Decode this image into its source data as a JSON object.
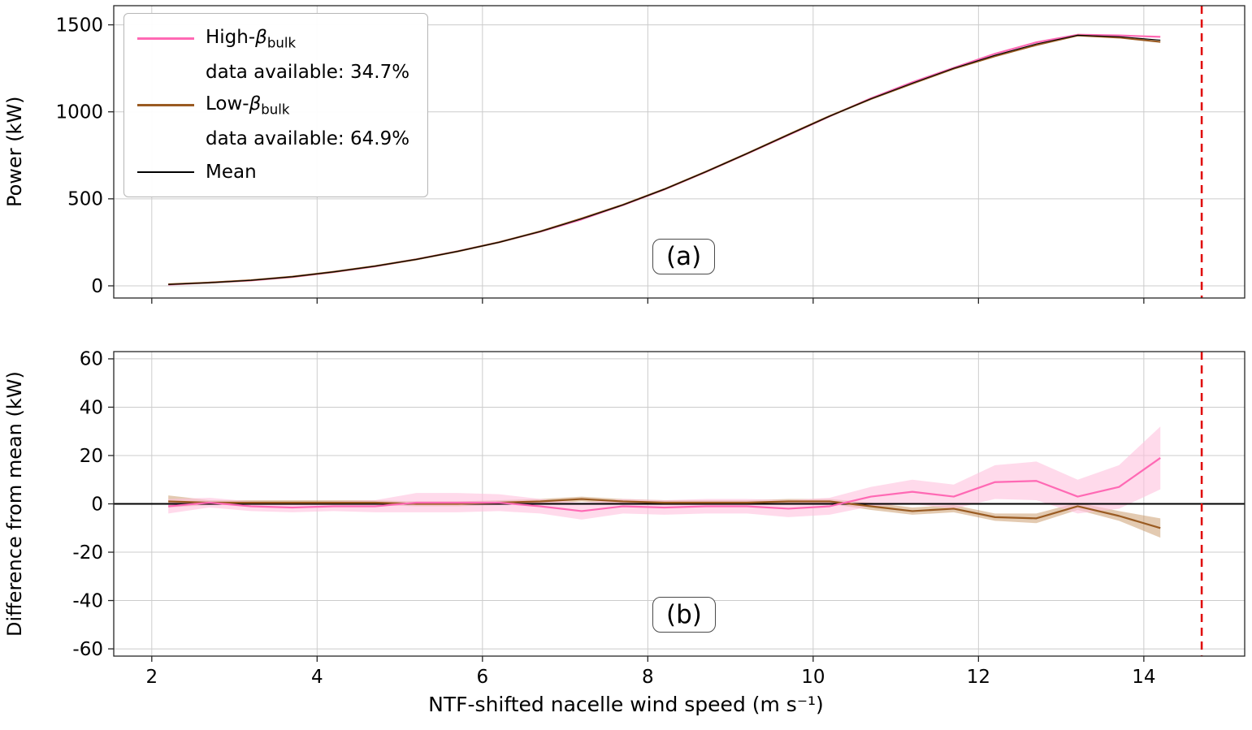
{
  "figure": {
    "xlabel": "NTF-shifted nacelle wind speed (m s⁻¹)"
  },
  "legend": {
    "entries": [
      {
        "prefix": "High-",
        "beta": "β",
        "sub": "bulk",
        "avail": "data available: 34.7%",
        "color": "#ff69b4"
      },
      {
        "prefix": "Low-",
        "beta": "β",
        "sub": "bulk",
        "avail": "data available: 64.9%",
        "color": "#9a5b22"
      },
      {
        "label": "Mean",
        "color": "#000000"
      }
    ]
  },
  "colors": {
    "high_line": "#ff69b4",
    "low_line": "#9a5b22",
    "mean_line": "#000000",
    "high_band": "#ffc2dd",
    "low_band": "#c89664",
    "cutoff_line": "#e00000",
    "grid": "#cccccc"
  },
  "chart_data": [
    {
      "id": "a",
      "type": "line",
      "title": "",
      "ylabel": "Power (kW)",
      "annotation": "(a)",
      "xlim": [
        1.54,
        15.22
      ],
      "ylim": [
        -70,
        1610
      ],
      "xticks": [
        2,
        4,
        6,
        8,
        10,
        12,
        14
      ],
      "yticks": [
        0,
        500,
        1000,
        1500
      ],
      "grid": true,
      "legend_position": "upper left",
      "vline": {
        "x": 14.7,
        "color": "#e00000",
        "style": "dashed"
      },
      "x": [
        2.2,
        2.7,
        3.2,
        3.7,
        4.2,
        4.7,
        5.2,
        5.7,
        6.2,
        6.7,
        7.2,
        7.7,
        8.2,
        8.7,
        9.2,
        9.7,
        10.2,
        10.7,
        11.2,
        11.7,
        12.2,
        12.7,
        13.2,
        13.7,
        14.2
      ],
      "series": [
        {
          "name": "High-beta_bulk power",
          "color": "#ff69b4",
          "width": 2.2,
          "values": [
            7,
            18.5,
            31,
            50.5,
            79,
            112,
            152.5,
            198.5,
            250.5,
            311,
            382,
            464,
            553.5,
            654,
            759,
            866,
            974,
            1078,
            1170,
            1253,
            1334,
            1399.5,
            1443,
            1439,
            1431
          ]
        },
        {
          "name": "Low-beta_bulk power",
          "color": "#9a5b22",
          "width": 2.2,
          "values": [
            9,
            18.5,
            32.5,
            52.5,
            80.5,
            113.5,
            152,
            198,
            250.5,
            313,
            387,
            466,
            555.5,
            655.5,
            760.5,
            869,
            976,
            1074,
            1162,
            1248,
            1319.5,
            1384,
            1439,
            1427,
            1402
          ]
        },
        {
          "name": "Mean power",
          "color": "#000000",
          "width": 1.1,
          "values": [
            8,
            18,
            32,
            52,
            80,
            113,
            152,
            198,
            250,
            312,
            385,
            465,
            555,
            655,
            760,
            868,
            975,
            1075,
            1165,
            1250,
            1325,
            1390,
            1440,
            1432,
            1412
          ]
        }
      ]
    },
    {
      "id": "b",
      "type": "line",
      "title": "",
      "ylabel": "Difference from mean (kW)",
      "xlabel": "NTF-shifted nacelle wind speed (m s⁻¹)",
      "annotation": "(b)",
      "xlim": [
        1.54,
        15.22
      ],
      "ylim": [
        -63,
        63
      ],
      "xticks": [
        2,
        4,
        6,
        8,
        10,
        12,
        14
      ],
      "yticks": [
        -60,
        -40,
        -20,
        0,
        20,
        40,
        60
      ],
      "grid": true,
      "hline": 0,
      "vline": {
        "x": 14.7,
        "color": "#e00000",
        "style": "dashed"
      },
      "x": [
        2.2,
        2.7,
        3.2,
        3.7,
        4.2,
        4.7,
        5.2,
        5.7,
        6.2,
        6.7,
        7.2,
        7.7,
        8.2,
        8.7,
        9.2,
        9.7,
        10.2,
        10.7,
        11.2,
        11.7,
        12.2,
        12.7,
        13.2,
        13.7,
        14.2
      ],
      "series": [
        {
          "name": "Low-beta_bulk minus mean",
          "color": "#9a5b22",
          "width": 2.2,
          "values": [
            1,
            0.5,
            0.5,
            0.5,
            0.5,
            0.5,
            0,
            0,
            0.5,
            1,
            2,
            1,
            0.5,
            0.5,
            0.5,
            1,
            1,
            -1,
            -3,
            -2,
            -5.5,
            -6,
            -1,
            -5,
            -10
          ],
          "band": [
            2.5,
            1,
            1,
            1,
            1,
            1,
            1,
            1,
            1,
            1,
            1,
            1,
            1,
            1,
            1,
            1,
            1,
            1.5,
            1.5,
            1.5,
            1.5,
            2,
            1.5,
            2,
            4
          ],
          "band_color": "#c89664",
          "band_opacity": 0.5
        },
        {
          "name": "High-beta_bulk minus mean",
          "color": "#ff69b4",
          "width": 2.2,
          "values": [
            -1,
            0.5,
            -1,
            -1.5,
            -1,
            -1,
            0.5,
            0.5,
            0.5,
            -1,
            -3,
            -1,
            -1.5,
            -1,
            -1,
            -2,
            -1,
            3,
            5,
            3,
            9,
            9.5,
            3,
            7,
            19
          ],
          "band": [
            3,
            2,
            2,
            2,
            2,
            2.5,
            4,
            4,
            3.5,
            3,
            3.5,
            3,
            3,
            3,
            3,
            3.5,
            3.5,
            4,
            5,
            5,
            7,
            8,
            7,
            9,
            13
          ],
          "band_color": "#ffc2dd",
          "band_opacity": 0.6
        }
      ]
    }
  ]
}
